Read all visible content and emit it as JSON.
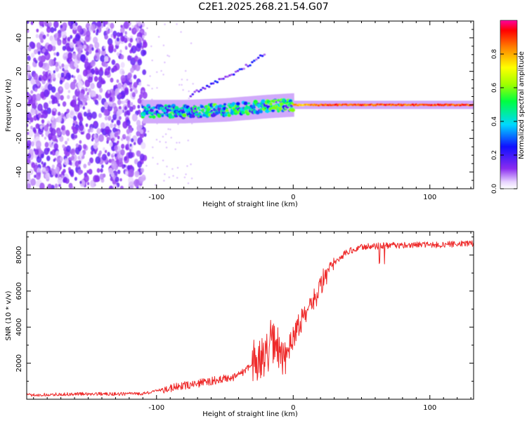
{
  "title": "C2E1.2025.268.21.54.G07",
  "chart_data": [
    {
      "type": "heatmap",
      "xlabel": "Height of straight line (km)",
      "ylabel": "Frequency (Hz)",
      "xlim": [
        -195,
        132
      ],
      "ylim": [
        -50,
        50
      ],
      "xticks": [
        -100,
        0,
        100
      ],
      "yticks": [
        -40,
        -20,
        0,
        20,
        40
      ],
      "colorbar": {
        "label": "Normalized spectral amplitude",
        "range": [
          0,
          1
        ],
        "ticks": [
          0.0,
          0.2,
          0.4,
          0.6,
          0.8
        ],
        "tick_labels": [
          "0.0",
          "0.2",
          "0.4",
          "0.6",
          "0.8"
        ]
      },
      "features": [
        {
          "name": "noise",
          "x_range": [
            -195,
            -108
          ],
          "y_range": [
            -50,
            50
          ],
          "amplitude": 0.15
        },
        {
          "name": "main_signal",
          "x": [
            -110,
            -80,
            -50,
            -20,
            0,
            20,
            132
          ],
          "y": [
            -4,
            -4,
            -3,
            -1,
            0,
            0,
            0
          ],
          "amplitude": [
            0.5,
            0.55,
            0.6,
            0.6,
            0.85,
            0.95,
            0.95
          ]
        },
        {
          "name": "upper_branch",
          "x": [
            -75,
            -60,
            -45,
            -30,
            -20
          ],
          "y": [
            6,
            12,
            18,
            25,
            31
          ],
          "amplitude": 0.2
        }
      ]
    },
    {
      "type": "line",
      "xlabel": "Height of straight line (km)",
      "ylabel": "SNR (10 * v/v)",
      "xlim": [
        -195,
        132
      ],
      "ylim": [
        0,
        9300
      ],
      "xticks": [
        -100,
        0,
        100
      ],
      "yticks": [
        2000,
        4000,
        6000,
        8000
      ],
      "series": [
        {
          "name": "SNR",
          "color": "#ee2a2a",
          "x": [
            -195,
            -150,
            -110,
            -95,
            -80,
            -60,
            -40,
            -30,
            -20,
            -15,
            -10,
            -5,
            0,
            5,
            10,
            15,
            20,
            25,
            30,
            35,
            40,
            50,
            60,
            80,
            100,
            120,
            132
          ],
          "y": [
            250,
            300,
            300,
            550,
            750,
            1000,
            1300,
            2000,
            2600,
            3300,
            2600,
            2400,
            3500,
            4200,
            4800,
            5400,
            6400,
            7000,
            7500,
            7900,
            8200,
            8450,
            8500,
            8550,
            8550,
            8600,
            8650
          ]
        }
      ]
    }
  ]
}
